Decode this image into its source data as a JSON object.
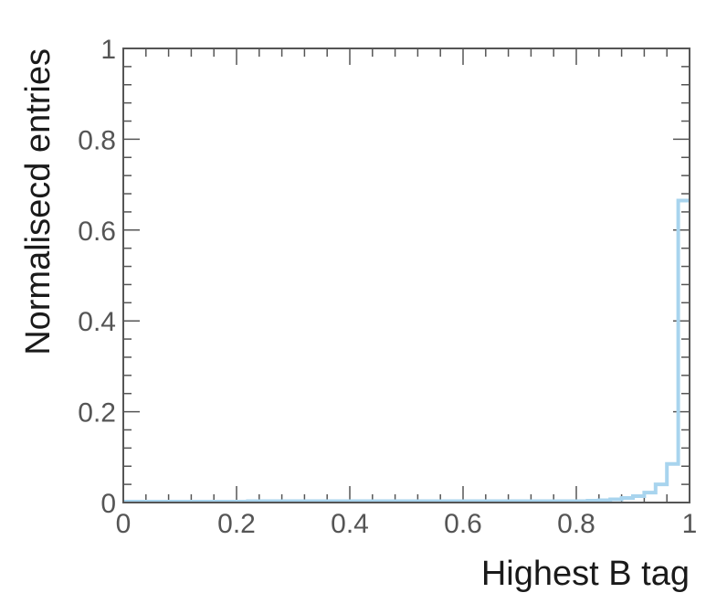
{
  "chart_data": {
    "type": "step",
    "xlabel": "Highest B tag",
    "ylabel": "Normalisecd entries",
    "xlim": [
      0,
      1
    ],
    "ylim": [
      0,
      1
    ],
    "x_ticks": [
      "0",
      "0.2",
      "0.4",
      "0.6",
      "0.8",
      "1"
    ],
    "y_ticks": [
      "0",
      "0.2",
      "0.4",
      "0.6",
      "0.8",
      "1"
    ],
    "grid": false,
    "series": [
      {
        "color": "#a8d4ee",
        "bin_edges": [
          0,
          0.02,
          0.04,
          0.06,
          0.08,
          0.1,
          0.12,
          0.14,
          0.16,
          0.18,
          0.2,
          0.22,
          0.24,
          0.26,
          0.28,
          0.3,
          0.32,
          0.34,
          0.36,
          0.38,
          0.4,
          0.42,
          0.44,
          0.46,
          0.48,
          0.5,
          0.52,
          0.54,
          0.56,
          0.58,
          0.6,
          0.62,
          0.64,
          0.66,
          0.68,
          0.7,
          0.72,
          0.74,
          0.76,
          0.78,
          0.8,
          0.82,
          0.84,
          0.86,
          0.88,
          0.9,
          0.92,
          0.94,
          0.96,
          0.98,
          1.0
        ],
        "values": [
          0.002,
          0.002,
          0.002,
          0.002,
          0.002,
          0.002,
          0.002,
          0.002,
          0.002,
          0.002,
          0.002,
          0.003,
          0.003,
          0.003,
          0.003,
          0.003,
          0.003,
          0.003,
          0.003,
          0.003,
          0.003,
          0.003,
          0.003,
          0.003,
          0.003,
          0.003,
          0.003,
          0.003,
          0.003,
          0.003,
          0.003,
          0.003,
          0.003,
          0.003,
          0.003,
          0.003,
          0.003,
          0.003,
          0.003,
          0.003,
          0.003,
          0.004,
          0.005,
          0.007,
          0.01,
          0.014,
          0.022,
          0.04,
          0.085,
          0.665
        ]
      }
    ]
  }
}
